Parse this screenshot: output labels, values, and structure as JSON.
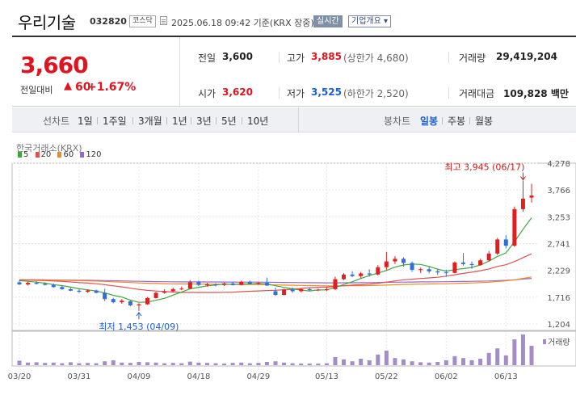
{
  "header": {
    "name": "우리기술",
    "code": "032820",
    "market": "코스닥",
    "datetime": "2025.06.18 09:42 기준(KRX 장중)",
    "realtime": "실시간",
    "company_info": "기업개요 ▾"
  },
  "price": {
    "current": "3,660",
    "change_label": "전일대비",
    "change_arrow": "▲",
    "change_value": "60",
    "change_pct": "+1.67%"
  },
  "stats": {
    "prev_label": "전일",
    "prev": "3,600",
    "high_label": "고가",
    "high": "3,885",
    "upper_limit": "(상한가 4,680)",
    "volume_label": "거래량",
    "volume": "29,419,204",
    "open_label": "시가",
    "open": "3,620",
    "low_label": "저가",
    "low": "3,525",
    "lower_limit": "(하한가 2,520)",
    "amount_label": "거래대금",
    "amount": "109,828 백만"
  },
  "toolbar": {
    "line_label": "선차트",
    "line_periods": [
      "1일",
      "1주일",
      "3개월",
      "1년",
      "3년",
      "5년",
      "10년"
    ],
    "candle_label": "봉차트",
    "candle_periods": [
      "일봉",
      "주봉",
      "월봉"
    ],
    "candle_active": "일봉"
  },
  "chart_data": {
    "type": "candlestick",
    "exchange": "한국거래소(KRX)",
    "ma_legend": [
      {
        "name": "5",
        "color": "#3fa63f"
      },
      {
        "name": "20",
        "color": "#e05050"
      },
      {
        "name": "60",
        "color": "#f08a1c"
      },
      {
        "name": "120",
        "color": "#9966cc"
      }
    ],
    "y_ticks": [
      1204,
      1716,
      2229,
      2741,
      3253,
      3766,
      4278
    ],
    "y_tick_labels": [
      "1,204",
      "1,716",
      "2,229",
      "2,741",
      "3,253",
      "3,766",
      "4,278"
    ],
    "ylim": [
      1204,
      4278
    ],
    "x_labels": [
      "03/20",
      "03/31",
      "04/09",
      "04/18",
      "04/29",
      "05/13",
      "05/22",
      "06/02",
      "06/13"
    ],
    "x_label_index": [
      0,
      7,
      14,
      21,
      28,
      36,
      43,
      50,
      57
    ],
    "high_annotation": "최고 3,945 (06/17)",
    "low_annotation": "최저 1,453 (04/09)",
    "volume_label": "거래량",
    "candles": [
      {
        "o": 2000,
        "h": 2040,
        "l": 1950,
        "c": 1960
      },
      {
        "o": 1960,
        "h": 2010,
        "l": 1940,
        "c": 1990
      },
      {
        "o": 1990,
        "h": 2020,
        "l": 1960,
        "c": 1970
      },
      {
        "o": 1970,
        "h": 2000,
        "l": 1940,
        "c": 1950
      },
      {
        "o": 1950,
        "h": 1975,
        "l": 1900,
        "c": 1910
      },
      {
        "o": 1910,
        "h": 1935,
        "l": 1860,
        "c": 1870
      },
      {
        "o": 1870,
        "h": 1895,
        "l": 1830,
        "c": 1840
      },
      {
        "o": 1840,
        "h": 1870,
        "l": 1800,
        "c": 1820
      },
      {
        "o": 1820,
        "h": 1860,
        "l": 1800,
        "c": 1845
      },
      {
        "o": 1845,
        "h": 1860,
        "l": 1790,
        "c": 1800
      },
      {
        "o": 1800,
        "h": 1880,
        "l": 1640,
        "c": 1680
      },
      {
        "o": 1680,
        "h": 1700,
        "l": 1600,
        "c": 1620
      },
      {
        "o": 1620,
        "h": 1680,
        "l": 1590,
        "c": 1650
      },
      {
        "o": 1640,
        "h": 1650,
        "l": 1540,
        "c": 1560
      },
      {
        "o": 1560,
        "h": 1600,
        "l": 1453,
        "c": 1580
      },
      {
        "o": 1580,
        "h": 1720,
        "l": 1570,
        "c": 1700
      },
      {
        "o": 1700,
        "h": 1820,
        "l": 1690,
        "c": 1800
      },
      {
        "o": 1800,
        "h": 1870,
        "l": 1780,
        "c": 1830
      },
      {
        "o": 1830,
        "h": 1900,
        "l": 1810,
        "c": 1870
      },
      {
        "o": 1870,
        "h": 1920,
        "l": 1850,
        "c": 1880
      },
      {
        "o": 1880,
        "h": 2040,
        "l": 1870,
        "c": 2000
      },
      {
        "o": 2000,
        "h": 2030,
        "l": 1930,
        "c": 1950
      },
      {
        "o": 1950,
        "h": 1990,
        "l": 1920,
        "c": 1960
      },
      {
        "o": 1960,
        "h": 1985,
        "l": 1920,
        "c": 1950
      },
      {
        "o": 1950,
        "h": 2000,
        "l": 1930,
        "c": 1980
      },
      {
        "o": 1980,
        "h": 2010,
        "l": 1940,
        "c": 1950
      },
      {
        "o": 1950,
        "h": 2030,
        "l": 1940,
        "c": 2010
      },
      {
        "o": 2010,
        "h": 2030,
        "l": 1960,
        "c": 1970
      },
      {
        "o": 1970,
        "h": 2010,
        "l": 1950,
        "c": 1990
      },
      {
        "o": 1990,
        "h": 2090,
        "l": 1930,
        "c": 1940
      },
      {
        "o": 1830,
        "h": 1900,
        "l": 1740,
        "c": 1760
      },
      {
        "o": 1760,
        "h": 1880,
        "l": 1750,
        "c": 1860
      },
      {
        "o": 1860,
        "h": 1900,
        "l": 1800,
        "c": 1830
      },
      {
        "o": 1830,
        "h": 1890,
        "l": 1810,
        "c": 1870
      },
      {
        "o": 1870,
        "h": 1900,
        "l": 1840,
        "c": 1850
      },
      {
        "o": 1850,
        "h": 1880,
        "l": 1830,
        "c": 1860
      },
      {
        "o": 1860,
        "h": 1900,
        "l": 1830,
        "c": 1870
      },
      {
        "o": 1870,
        "h": 2110,
        "l": 1850,
        "c": 2060
      },
      {
        "o": 2060,
        "h": 2180,
        "l": 2040,
        "c": 2150
      },
      {
        "o": 2150,
        "h": 2210,
        "l": 2100,
        "c": 2120
      },
      {
        "o": 2120,
        "h": 2200,
        "l": 2080,
        "c": 2170
      },
      {
        "o": 2170,
        "h": 2250,
        "l": 2110,
        "c": 2150
      },
      {
        "o": 2150,
        "h": 2330,
        "l": 2130,
        "c": 2290
      },
      {
        "o": 2290,
        "h": 2580,
        "l": 2230,
        "c": 2400
      },
      {
        "o": 2400,
        "h": 2500,
        "l": 2350,
        "c": 2450
      },
      {
        "o": 2450,
        "h": 2480,
        "l": 2300,
        "c": 2370
      },
      {
        "o": 2370,
        "h": 2400,
        "l": 2200,
        "c": 2240
      },
      {
        "o": 2240,
        "h": 2280,
        "l": 2180,
        "c": 2250
      },
      {
        "o": 2250,
        "h": 2300,
        "l": 2170,
        "c": 2210
      },
      {
        "o": 2210,
        "h": 2260,
        "l": 2140,
        "c": 2190
      },
      {
        "o": 2190,
        "h": 2240,
        "l": 2110,
        "c": 2180
      },
      {
        "o": 2180,
        "h": 2400,
        "l": 2170,
        "c": 2380
      },
      {
        "o": 2380,
        "h": 2560,
        "l": 2320,
        "c": 2350
      },
      {
        "o": 2350,
        "h": 2400,
        "l": 2260,
        "c": 2330
      },
      {
        "o": 2330,
        "h": 2450,
        "l": 2320,
        "c": 2420
      },
      {
        "o": 2420,
        "h": 2600,
        "l": 2400,
        "c": 2550
      },
      {
        "o": 2550,
        "h": 2850,
        "l": 2520,
        "c": 2820
      },
      {
        "o": 2820,
        "h": 2900,
        "l": 2650,
        "c": 2700
      },
      {
        "o": 2700,
        "h": 3450,
        "l": 2680,
        "c": 3400
      },
      {
        "o": 3400,
        "h": 3945,
        "l": 3350,
        "c": 3600
      },
      {
        "o": 3620,
        "h": 3885,
        "l": 3525,
        "c": 3660
      }
    ],
    "volumes": [
      14,
      8,
      9,
      7,
      8,
      6,
      9,
      6,
      7,
      6,
      12,
      15,
      8,
      7,
      10,
      9,
      8,
      6,
      7,
      6,
      11,
      8,
      7,
      6,
      5,
      7,
      8,
      6,
      7,
      10,
      12,
      8,
      6,
      5,
      5,
      5,
      6,
      25,
      18,
      12,
      20,
      15,
      33,
      45,
      22,
      18,
      12,
      9,
      8,
      10,
      15,
      28,
      22,
      15,
      20,
      38,
      52,
      30,
      80,
      95,
      60
    ]
  }
}
